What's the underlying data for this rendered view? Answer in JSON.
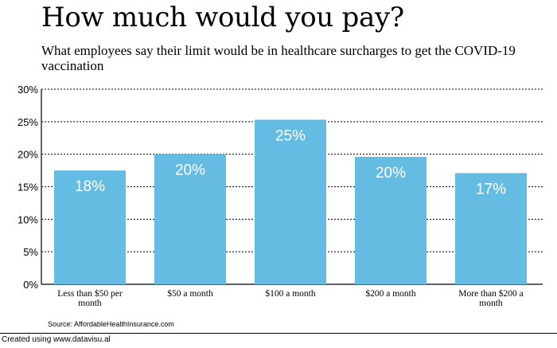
{
  "chart_data": {
    "type": "bar",
    "title": "How much would you pay?",
    "subtitle": "What employees say their limit would be in healthcare surcharges to get the COVID-19 vaccination",
    "categories": [
      [
        "Less than $50 per",
        "month"
      ],
      [
        "$50 a month"
      ],
      [
        "$100 a month"
      ],
      [
        "$200 a month"
      ],
      [
        "More than $200 a",
        "month"
      ]
    ],
    "values": [
      18,
      20,
      25,
      20,
      17
    ],
    "bar_heights": [
      17.5,
      20.0,
      25.3,
      19.6,
      17.1
    ],
    "value_labels": [
      "18%",
      "20%",
      "25%",
      "20%",
      "17%"
    ],
    "ylim": [
      0,
      30
    ],
    "yticks": [
      "0%",
      "5%",
      "10%",
      "15%",
      "20%",
      "25%",
      "30%"
    ],
    "grid": true,
    "bar_color": "#65bce3",
    "xlabel": "",
    "ylabel": ""
  },
  "source": "Source: AffordableHealthInsurance.com",
  "credit": "Created using www.datavisu.al"
}
